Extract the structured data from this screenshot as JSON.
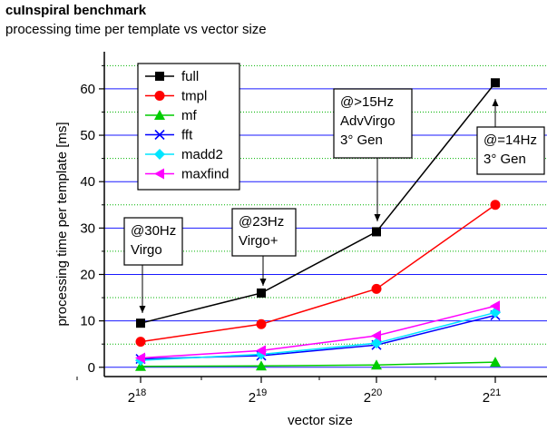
{
  "chart_data": {
    "type": "line",
    "title": "cuInspiral benchmark",
    "subtitle": "processing time per template vs vector size",
    "xlabel": "vector size",
    "ylabel": "processing time per template [ms]",
    "x_scale": "log2",
    "x": [
      262144,
      524288,
      1048576,
      2097152
    ],
    "x_ticks": [
      {
        "base": "2",
        "exp": "18"
      },
      {
        "base": "2",
        "exp": "19"
      },
      {
        "base": "2",
        "exp": "20"
      },
      {
        "base": "2",
        "exp": "21"
      }
    ],
    "ylim": [
      -2,
      68
    ],
    "y_ticks": [
      0,
      10,
      20,
      30,
      40,
      50,
      60
    ],
    "grid": true,
    "legend_position": "top-left",
    "series": [
      {
        "name": "full",
        "color": "#000000",
        "marker": "square",
        "values": [
          9.5,
          16,
          29.2,
          61.3
        ]
      },
      {
        "name": "tmpl",
        "color": "#ff0000",
        "marker": "circle",
        "values": [
          5.5,
          9.3,
          16.9,
          35.0
        ]
      },
      {
        "name": "mf",
        "color": "#00cc00",
        "marker": "triangle-up",
        "values": [
          0.2,
          0.3,
          0.5,
          1.1
        ]
      },
      {
        "name": "fft",
        "color": "#0000ff",
        "marker": "x",
        "values": [
          1.8,
          2.5,
          4.8,
          11.2
        ]
      },
      {
        "name": "madd2",
        "color": "#00e5ff",
        "marker": "diamond",
        "values": [
          1.5,
          2.8,
          5.2,
          11.8
        ]
      },
      {
        "name": "maxfind",
        "color": "#ff00ff",
        "marker": "triangle-left",
        "values": [
          2.0,
          3.6,
          6.8,
          13.2
        ]
      }
    ],
    "annotations": [
      {
        "lines": [
          "@30Hz",
          "Virgo"
        ]
      },
      {
        "lines": [
          "@23Hz",
          "Virgo+"
        ]
      },
      {
        "lines": [
          ">15Hz",
          "AdvVirgo",
          "3° Gen"
        ],
        "prefix": "@"
      },
      {
        "lines": [
          "@=14Hz",
          "3° Gen"
        ]
      }
    ]
  }
}
